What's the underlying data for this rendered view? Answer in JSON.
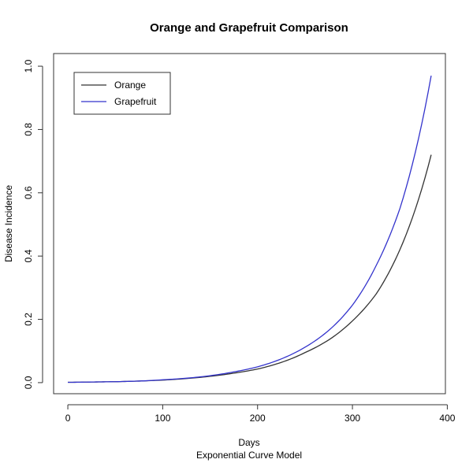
{
  "chart_data": {
    "type": "line",
    "title": "Orange and Grapefruit Comparison",
    "xlabel": "Days",
    "xlabel_sub": "Exponential Curve Model",
    "ylabel": "Disease Incidence",
    "xlim": [
      -15,
      398
    ],
    "ylim": [
      -0.035,
      1.04
    ],
    "xticks": [
      0,
      100,
      200,
      300,
      400
    ],
    "yticks": [
      0.0,
      0.2,
      0.4,
      0.6,
      0.8,
      1.0
    ],
    "xtick_labels": [
      "0",
      "100",
      "200",
      "300",
      "400"
    ],
    "ytick_labels": [
      "0.0",
      "0.2",
      "0.4",
      "0.6",
      "0.8",
      "1.0"
    ],
    "legend": "top-left",
    "grid": false,
    "series": [
      {
        "name": "Orange",
        "color": "#333333",
        "x": [
          0,
          25,
          50,
          75,
          100,
          125,
          150,
          175,
          200,
          225,
          250,
          275,
          300,
          325,
          350,
          383
        ],
        "values": [
          0.001,
          0.002,
          0.003,
          0.005,
          0.008,
          0.013,
          0.02,
          0.03,
          0.043,
          0.064,
          0.095,
          0.135,
          0.195,
          0.28,
          0.42,
          0.72
        ]
      },
      {
        "name": "Grapefruit",
        "color": "#3333cc",
        "x": [
          0,
          25,
          50,
          75,
          100,
          125,
          150,
          175,
          200,
          225,
          250,
          275,
          300,
          325,
          350,
          383
        ],
        "values": [
          0.001,
          0.002,
          0.003,
          0.005,
          0.009,
          0.014,
          0.022,
          0.034,
          0.05,
          0.075,
          0.112,
          0.165,
          0.245,
          0.37,
          0.55,
          0.97
        ]
      }
    ]
  }
}
